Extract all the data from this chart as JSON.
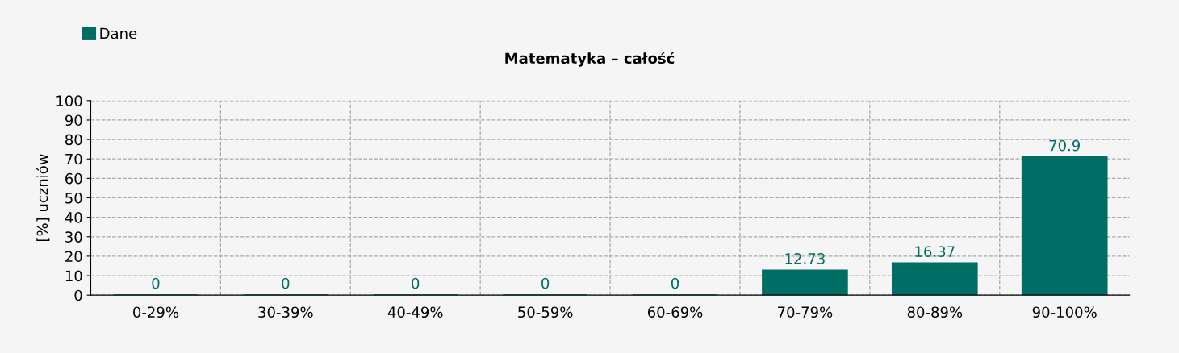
{
  "chart_data": {
    "type": "bar",
    "title": "Matematyka – całość",
    "ylabel": "[%] uczniów",
    "categories": [
      "0-29%",
      "30-39%",
      "40-49%",
      "50-59%",
      "60-69%",
      "70-79%",
      "80-89%",
      "90-100%"
    ],
    "series": [
      {
        "name": "Dane",
        "color": "#006e64",
        "values": [
          0,
          0,
          0,
          0,
          0,
          12.73,
          16.37,
          70.9
        ]
      }
    ],
    "ylim": [
      0,
      100
    ],
    "yticks": [
      0,
      10,
      20,
      30,
      40,
      50,
      60,
      70,
      80,
      90,
      100
    ],
    "grid": true,
    "legend": "top left",
    "data_labels": true
  }
}
